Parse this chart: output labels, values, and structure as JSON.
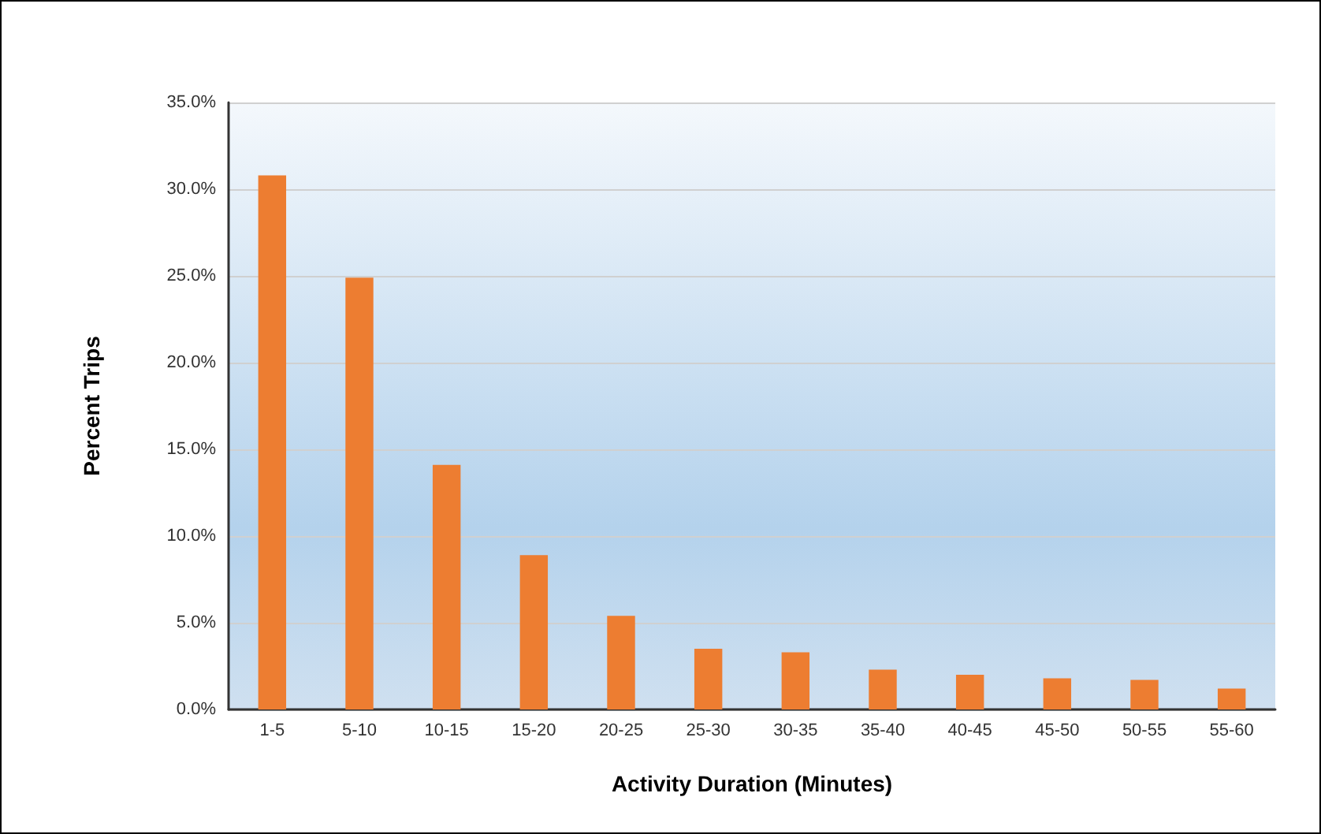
{
  "chart_data": {
    "type": "bar",
    "xlabel": "Activity Duration (Minutes)",
    "ylabel": "Percent Trips",
    "categories": [
      "1-5",
      "5-10",
      "10-15",
      "15-20",
      "20-25",
      "25-30",
      "30-35",
      "35-40",
      "40-45",
      "45-50",
      "50-55",
      "55-60"
    ],
    "values": [
      30.8,
      24.9,
      14.1,
      8.9,
      5.4,
      3.5,
      3.3,
      2.3,
      2.0,
      1.8,
      1.7,
      1.2
    ],
    "color": "#ed7d31",
    "ylim": [
      0,
      35
    ],
    "yticks": [
      {
        "value": 0,
        "label": "0.0%"
      },
      {
        "value": 5,
        "label": "5.0%"
      },
      {
        "value": 10,
        "label": "10.0%"
      },
      {
        "value": 15,
        "label": "15.0%"
      },
      {
        "value": 20,
        "label": "20.0%"
      },
      {
        "value": 25,
        "label": "25.0%"
      },
      {
        "value": 30,
        "label": "30.0%"
      },
      {
        "value": 35,
        "label": "35.0%"
      }
    ],
    "grid": "y"
  }
}
